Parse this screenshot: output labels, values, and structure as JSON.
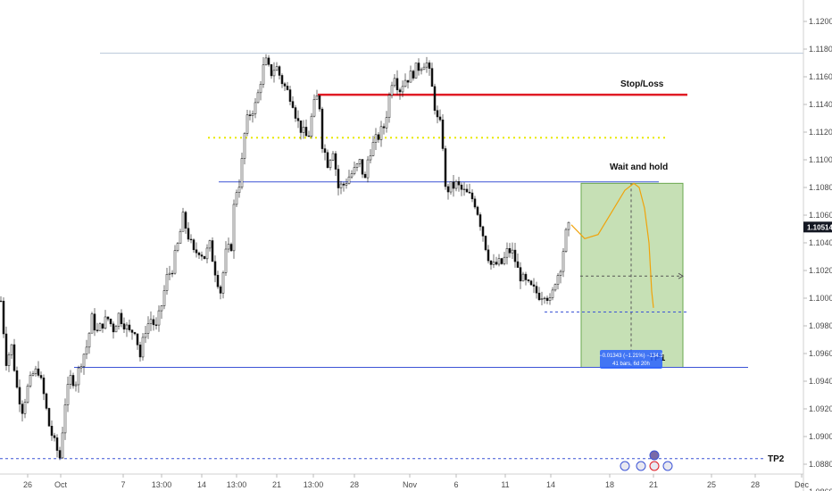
{
  "chart_data": {
    "type": "candlestick",
    "price_range": [
      1.0855,
      1.1225
    ],
    "y_ticks": [
      1.12,
      1.118,
      1.116,
      1.114,
      1.112,
      1.11,
      1.108,
      1.106,
      1.104,
      1.102,
      1.1,
      1.098,
      1.096,
      1.094,
      1.092,
      1.09,
      1.088,
      1.086
    ],
    "y_tick_labels": [
      "1.12000",
      "1.11800",
      "1.11600",
      "1.11400",
      "1.11200",
      "1.11000",
      "1.10800",
      "1.10600",
      "1.10400",
      "1.10200",
      "1.10000",
      "1.09800",
      "1.09600",
      "1.09400",
      "1.09200",
      "1.09000",
      "1.08800",
      "1.08600"
    ],
    "x_ticks": [
      "26",
      "Oct",
      "7",
      "13:00",
      "14",
      "13:00",
      "21",
      "13:00",
      "28",
      "Nov",
      "6",
      "11",
      "14",
      "18",
      "21",
      "25",
      "28",
      "Dec"
    ],
    "last_price": 1.10514,
    "last_price_label": "1.10514",
    "series_path": [
      [
        0,
        1.0998
      ],
      [
        6,
        1.0955
      ],
      [
        12,
        1.0965
      ],
      [
        18,
        1.0935
      ],
      [
        24,
        1.092
      ],
      [
        30,
        1.0935
      ],
      [
        36,
        1.0945
      ],
      [
        42,
        1.0948
      ],
      [
        48,
        1.093
      ],
      [
        54,
        1.0908
      ],
      [
        60,
        1.0895
      ],
      [
        66,
        1.0885
      ],
      [
        72,
        1.0925
      ],
      [
        78,
        1.0942
      ],
      [
        84,
        1.094
      ],
      [
        90,
        1.0955
      ],
      [
        96,
        1.0965
      ],
      [
        102,
        1.0985
      ],
      [
        108,
        1.0975
      ],
      [
        114,
        1.0982
      ],
      [
        120,
        1.0985
      ],
      [
        126,
        1.0978
      ],
      [
        132,
        1.0988
      ],
      [
        138,
        1.0982
      ],
      [
        144,
        1.0975
      ],
      [
        150,
        1.0978
      ],
      [
        156,
        1.0958
      ],
      [
        162,
        1.0978
      ],
      [
        168,
        1.0985
      ],
      [
        174,
        1.0978
      ],
      [
        180,
        1.0995
      ],
      [
        186,
        1.1015
      ],
      [
        192,
        1.1022
      ],
      [
        198,
        1.1038
      ],
      [
        204,
        1.1058
      ],
      [
        210,
        1.1045
      ],
      [
        216,
        1.1032
      ],
      [
        222,
        1.1035
      ],
      [
        228,
        1.103
      ],
      [
        234,
        1.1038
      ],
      [
        240,
        1.102
      ],
      [
        246,
        1.1005
      ],
      [
        252,
        1.1032
      ],
      [
        258,
        1.1038
      ],
      [
        262,
        1.1075
      ],
      [
        268,
        1.1085
      ],
      [
        274,
        1.1125
      ],
      [
        280,
        1.1135
      ],
      [
        286,
        1.114
      ],
      [
        290,
        1.1155
      ],
      [
        296,
        1.1172
      ],
      [
        302,
        1.1162
      ],
      [
        308,
        1.1168
      ],
      [
        314,
        1.1158
      ],
      [
        320,
        1.115
      ],
      [
        326,
        1.1145
      ],
      [
        332,
        1.1128
      ],
      [
        338,
        1.112
      ],
      [
        344,
        1.1115
      ],
      [
        350,
        1.1138
      ],
      [
        356,
        1.1148
      ],
      [
        360,
        1.1112
      ],
      [
        366,
        1.1098
      ],
      [
        372,
        1.1108
      ],
      [
        378,
        1.108
      ],
      [
        384,
        1.1082
      ],
      [
        390,
        1.1088
      ],
      [
        396,
        1.1092
      ],
      [
        402,
        1.1098
      ],
      [
        408,
        1.1085
      ],
      [
        412,
        1.1105
      ],
      [
        418,
        1.1112
      ],
      [
        424,
        1.1118
      ],
      [
        430,
        1.1125
      ],
      [
        434,
        1.1142
      ],
      [
        440,
        1.1165
      ],
      [
        446,
        1.115
      ],
      [
        452,
        1.1158
      ],
      [
        458,
        1.116
      ],
      [
        464,
        1.1165
      ],
      [
        470,
        1.1168
      ],
      [
        476,
        1.1172
      ],
      [
        480,
        1.1162
      ],
      [
        484,
        1.1148
      ],
      [
        488,
        1.113
      ],
      [
        494,
        1.1122
      ],
      [
        498,
        1.1078
      ],
      [
        504,
        1.108
      ],
      [
        510,
        1.1082
      ],
      [
        516,
        1.1078
      ],
      [
        522,
        1.1075
      ],
      [
        528,
        1.1072
      ],
      [
        532,
        1.1068
      ],
      [
        538,
        1.1052
      ],
      [
        544,
        1.1035
      ],
      [
        550,
        1.1022
      ],
      [
        556,
        1.1025
      ],
      [
        562,
        1.1025
      ],
      [
        568,
        1.1035
      ],
      [
        574,
        1.1032
      ],
      [
        580,
        1.1018
      ],
      [
        586,
        1.1012
      ],
      [
        592,
        1.1008
      ],
      [
        598,
        1.1005
      ],
      [
        604,
        1.1002
      ],
      [
        610,
        1.1005
      ],
      [
        616,
        1.0995
      ],
      [
        620,
        1.1012
      ],
      [
        626,
        1.102
      ],
      [
        630,
        1.1035
      ],
      [
        634,
        1.105
      ],
      [
        638,
        1.1051
      ]
    ],
    "level_lines": [
      {
        "name": "top-line",
        "y": 1.1177,
        "x0": 112,
        "x1": 900,
        "color": "#b8c6d8",
        "style": "solid",
        "width": 1
      },
      {
        "name": "stop-loss-line",
        "y": 1.1147,
        "x0": 356,
        "x1": 770,
        "color": "#e01b24",
        "style": "solid",
        "width": 2.5
      },
      {
        "name": "yellow-dotted-line",
        "y": 1.1116,
        "x0": 233,
        "x1": 745,
        "color": "#e8e800",
        "style": "dotted",
        "width": 2
      },
      {
        "name": "wait-and-hold-line",
        "y": 1.1084,
        "x0": 245,
        "x1": 738,
        "color": "#3c54d6",
        "style": "solid",
        "width": 1
      },
      {
        "name": "tp1-line",
        "y": 1.095,
        "x0": 83,
        "x1": 838,
        "color": "#3c54d6",
        "style": "solid",
        "width": 1
      },
      {
        "name": "tp2-line",
        "y": 1.0884,
        "x0": 0,
        "x1": 855,
        "color": "#3c54d6",
        "style": "dashed",
        "width": 1
      },
      {
        "name": "target-dotted-line",
        "y": 1.099,
        "x0": 610,
        "x1": 770,
        "color": "#3c54d6",
        "style": "dashed",
        "width": 1
      },
      {
        "name": "mid-dotted-line",
        "y": 1.1016,
        "x0": 650,
        "x1": 765,
        "color": "#555555",
        "style": "dashed",
        "width": 1
      }
    ],
    "annotations": [
      {
        "name": "stop-loss-label",
        "text": "Stop/Loss",
        "x": 695,
        "y": 1.1153
      },
      {
        "name": "wait-and-hold-label",
        "text": "Wait and hold",
        "x": 683,
        "y": 1.1093
      },
      {
        "name": "tp1-label",
        "text": "TP1",
        "x": 727,
        "y": 1.0955
      },
      {
        "name": "tp2-label",
        "text": "TP2",
        "x": 860,
        "y": 1.0882
      }
    ],
    "measure_box": {
      "x0": 651,
      "x1": 765,
      "y_top": 1.1083,
      "y_bottom": 1.095,
      "label_line1": "−0.01343 (−1.21%) −134.3",
      "label_line2": "41 bars, 6d 20h"
    },
    "projection_path": [
      [
        640,
        1.1053
      ],
      [
        655,
        1.1043
      ],
      [
        670,
        1.1046
      ],
      [
        685,
        1.1062
      ],
      [
        700,
        1.1078
      ],
      [
        710,
        1.1083
      ],
      [
        716,
        1.108
      ],
      [
        722,
        1.1065
      ],
      [
        727,
        1.104
      ],
      [
        730,
        1.1005
      ],
      [
        732,
        1.0993
      ]
    ]
  }
}
